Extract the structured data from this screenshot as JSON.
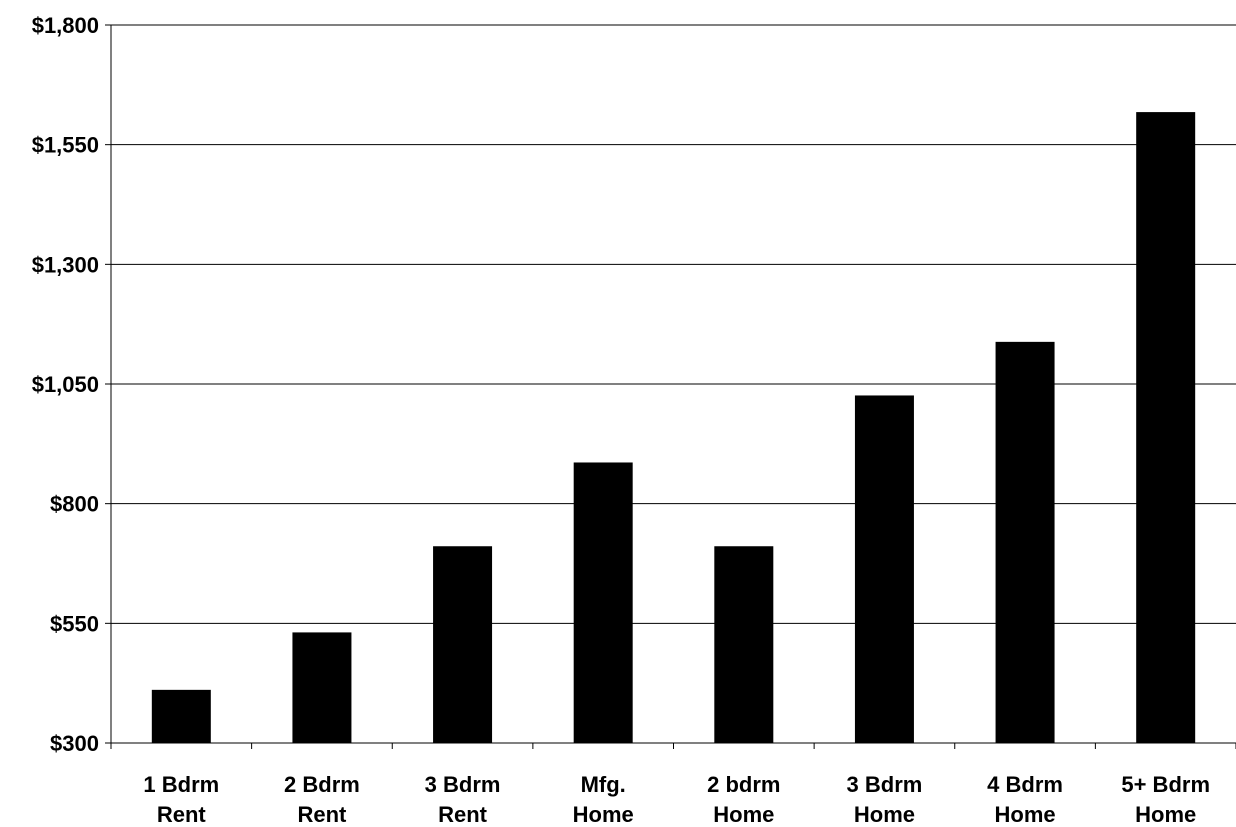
{
  "chart_data": {
    "type": "bar",
    "categories": [
      [
        "1 Bdrm",
        "Rent"
      ],
      [
        "2 Bdrm",
        "Rent"
      ],
      [
        "3 Bdrm",
        "Rent"
      ],
      [
        "Mfg.",
        "Home"
      ],
      [
        "2 bdrm",
        "Home"
      ],
      [
        "3 Bdrm",
        "Home"
      ],
      [
        "4 Bdrm",
        "Home"
      ],
      [
        "5+ Bdrm",
        "Home"
      ]
    ],
    "values": [
      410,
      530,
      710,
      885,
      710,
      1025,
      1137,
      1617
    ],
    "ylim": [
      300,
      1800
    ],
    "yticks": [
      300,
      550,
      800,
      1050,
      1300,
      1550,
      1800
    ],
    "ytick_labels": [
      "$300",
      "$550",
      "$800",
      "$1,050",
      "$1,300",
      "$1,550",
      "$1,800"
    ],
    "grid": true,
    "bar_color": "#000000",
    "title": "",
    "xlabel": "",
    "ylabel": ""
  }
}
